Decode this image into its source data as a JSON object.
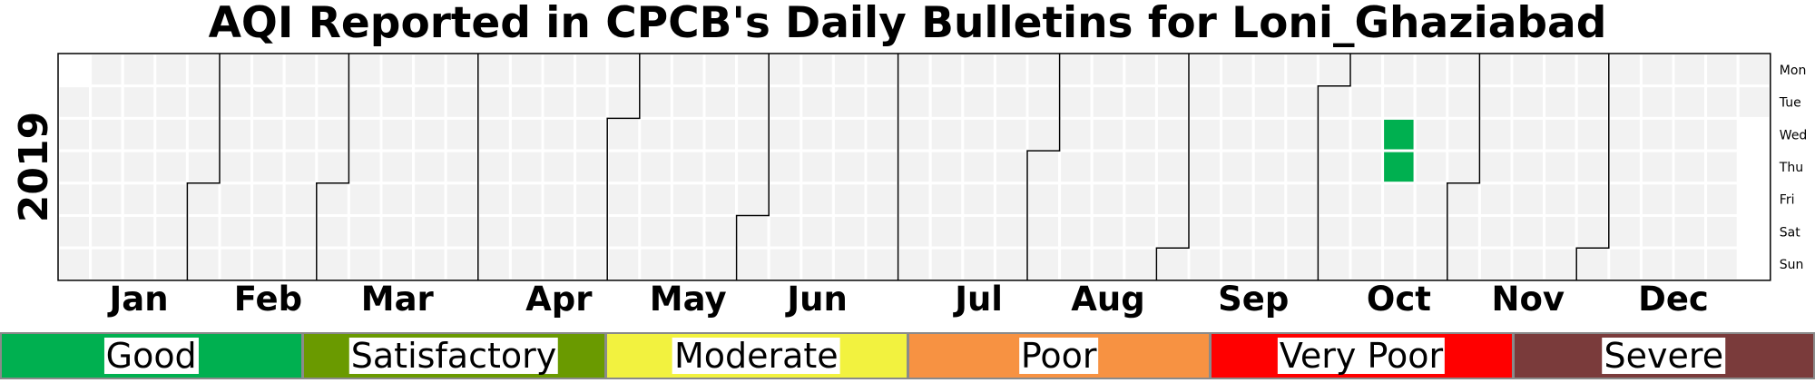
{
  "chart_data": {
    "type": "heatmap",
    "title": "AQI Reported in CPCB's Daily Bulletins for Loni_Ghaziabad",
    "year_label": "2019",
    "months": [
      "Jan",
      "Feb",
      "Mar",
      "Apr",
      "May",
      "Jun",
      "Jul",
      "Aug",
      "Sep",
      "Oct",
      "Nov",
      "Dec"
    ],
    "weekdays": [
      "Mon",
      "Tue",
      "Wed",
      "Thu",
      "Fri",
      "Sat",
      "Sun"
    ],
    "grid": true,
    "empty_color": "#f2f2f2",
    "data": [
      {
        "date": "2019-10-16",
        "category": "Good"
      },
      {
        "date": "2019-10-17",
        "category": "Good"
      }
    ],
    "legend": [
      {
        "label": "Good",
        "color": "#00b050"
      },
      {
        "label": "Satisfactory",
        "color": "#6a9a00"
      },
      {
        "label": "Moderate",
        "color": "#f2f23f"
      },
      {
        "label": "Poor",
        "color": "#f79242"
      },
      {
        "label": "Very Poor",
        "color": "#ff0000"
      },
      {
        "label": "Severe",
        "color": "#7a3b3b"
      }
    ]
  }
}
